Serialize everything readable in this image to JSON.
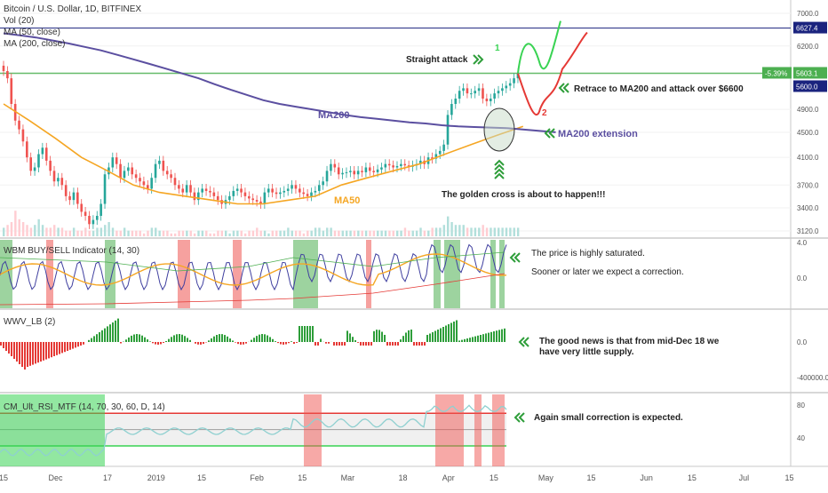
{
  "chart_data": {
    "type": "candlestick",
    "symbol_line": "Bitcoin / U.S. Dollar, 1D, BITFINEX",
    "legends": [
      "Vol (20)",
      "MA (50, close)",
      "MA (200, close)"
    ],
    "price_axis": {
      "ticks": [
        "7000.0",
        "6200.0",
        "5600.0",
        "4900.0",
        "4500.0",
        "4100.0",
        "3700.0",
        "3400.0",
        "3120.0"
      ],
      "tick_values": [
        7000,
        6200,
        5600,
        4900,
        4500,
        4100,
        3700,
        3400,
        3120
      ],
      "badges": [
        {
          "text": "6627.4",
          "value": 6627.4,
          "color": "#1a237e"
        },
        {
          "text": "5603.1",
          "value": 5603.1,
          "color": "#4caf50"
        },
        {
          "text": "5600.0",
          "value": 5600.0,
          "color": "#1a237e"
        }
      ],
      "change_label": "-5.39%"
    },
    "x_axis": {
      "labels": [
        "15",
        "Dec",
        "17",
        "2019",
        "15",
        "Feb",
        "15",
        "Mar",
        "18",
        "Apr",
        "15",
        "May",
        "15",
        "Jun",
        "15",
        "Jul",
        "15"
      ],
      "start_date": "2018-11-15",
      "label_dates": [
        "2018-11-15",
        "2018-12-01",
        "2018-12-17",
        "2019-01-01",
        "2019-01-15",
        "2019-02-01",
        "2019-02-15",
        "2019-03-01",
        "2019-03-18",
        "2019-04-01",
        "2019-04-15",
        "2019-05-01",
        "2019-05-15",
        "2019-06-01",
        "2019-06-15",
        "2019-07-01",
        "2019-07-15"
      ]
    },
    "close_prices": [
      5650,
      5500,
      5000,
      4700,
      4550,
      4350,
      4100,
      3900,
      3950,
      4150,
      4250,
      4050,
      3900,
      3750,
      3800,
      3700,
      3550,
      3500,
      3600,
      3450,
      3350,
      3300,
      3200,
      3250,
      3300,
      3450,
      3850,
      3950,
      4100,
      4000,
      3800,
      3900,
      3950,
      3850,
      3800,
      3750,
      3700,
      3650,
      3800,
      4000,
      4050,
      3900,
      3850,
      3800,
      3700,
      3650,
      3600,
      3700,
      3600,
      3500,
      3600,
      3650,
      3620,
      3600,
      3550,
      3500,
      3450,
      3500,
      3550,
      3620,
      3650,
      3600,
      3550,
      3520,
      3500,
      3480,
      3450,
      3600,
      3650,
      3600,
      3580,
      3600,
      3620,
      3650,
      3700,
      3650,
      3600,
      3580,
      3550,
      3600,
      3620,
      3700,
      3750,
      3900,
      4000,
      3950,
      3850,
      3870,
      3880,
      3900,
      3850,
      3900,
      3880,
      3950,
      3900,
      3880,
      3920,
      3950,
      4000,
      3980,
      3950,
      3970,
      4000,
      3980,
      3960,
      3980,
      4000,
      4050,
      4000,
      4100,
      4080,
      4150,
      4200,
      4300,
      4800,
      5000,
      5100,
      5250,
      5300,
      5200,
      5200,
      5250,
      5300,
      5100,
      5050,
      5100,
      5200,
      5250,
      5300,
      5350,
      5400,
      5500,
      5600
    ],
    "ma200": [
      6500,
      6450,
      6400,
      6330,
      6260,
      6180,
      6100,
      6000,
      5900,
      5800,
      5700,
      5600,
      5500,
      5380,
      5270,
      5170,
      5070,
      5000,
      4950,
      4900,
      4850,
      4800,
      4760,
      4730,
      4700,
      4670,
      4650,
      4620,
      4600,
      4590,
      4580,
      4570
    ],
    "ma50": [
      5000,
      4700,
      4400,
      4100,
      3900,
      3700,
      3600,
      3550,
      3500,
      3450,
      3450,
      3500,
      3550,
      3700,
      3800,
      3900,
      4000,
      4150,
      4300,
      4450,
      4600
    ],
    "volume": [
      3,
      4,
      5,
      9,
      6,
      5,
      4,
      3,
      4,
      6,
      4,
      3,
      3,
      4,
      3,
      3,
      2,
      2,
      3,
      2,
      2,
      3,
      2,
      2,
      3,
      3,
      4,
      5,
      3,
      2,
      2,
      3,
      2,
      2,
      2,
      2,
      1,
      2,
      3,
      3,
      2,
      2,
      2,
      1,
      1,
      2,
      2,
      2,
      2,
      1,
      2,
      2,
      2,
      1,
      1,
      2,
      2,
      2,
      1,
      2,
      2,
      2,
      1,
      2,
      2,
      3,
      2,
      2,
      1,
      2,
      2,
      2,
      2,
      3,
      2,
      2,
      2,
      1,
      2,
      2,
      3,
      3,
      2,
      3,
      3,
      2,
      2,
      2,
      2,
      2,
      2,
      2,
      2,
      2,
      2,
      2,
      2,
      2,
      2,
      2,
      2,
      2,
      2,
      3,
      2,
      2,
      2,
      3,
      2,
      2,
      3,
      3,
      3,
      4,
      7,
      5,
      4,
      4,
      4,
      3,
      3,
      3,
      3,
      4,
      3,
      3,
      3,
      3,
      3,
      3,
      3,
      3,
      3
    ],
    "indicators": [
      {
        "title": "WBM BUY/SELL Indicator (14, 30)",
        "ticks": [
          "4.0",
          "0.0"
        ],
        "tick_values": [
          4.0,
          0.0
        ]
      },
      {
        "title": "WWV_LB (2)",
        "ticks": [
          "0.0",
          "-400000.0"
        ],
        "tick_values": [
          0,
          -400000
        ]
      },
      {
        "title": "CM_Ult_RSI_MTF (14, 70, 30, 60, D, 14)",
        "ticks": [
          "80",
          "40"
        ],
        "tick_values": [
          80,
          40
        ]
      }
    ]
  },
  "annotations": {
    "straight_attack": "Straight attack",
    "scenario_1": "1",
    "scenario_2": "2",
    "retrace": "Retrace to MA200 and attack over $6600",
    "ma200_label": "MA200",
    "ma200_extension": "MA200 extension",
    "ma50_label": "MA50",
    "golden_cross": "The golden cross is about to happen!!!",
    "saturated_1": "The price is highly saturated.",
    "saturated_2": "Sooner or later we expect a correction.",
    "supply_1": "The good news is that from mid-Dec 18 we",
    "supply_2": "have very little supply.",
    "correction": "Again small correction is expected."
  },
  "colors": {
    "up": "#26a69a",
    "down": "#ef5350",
    "ma200": "#5b4fa0",
    "ma50": "#f5a623",
    "arrow_green": "#2e9e3a",
    "scenario_1": "#39d353",
    "scenario_2": "#e53935"
  }
}
